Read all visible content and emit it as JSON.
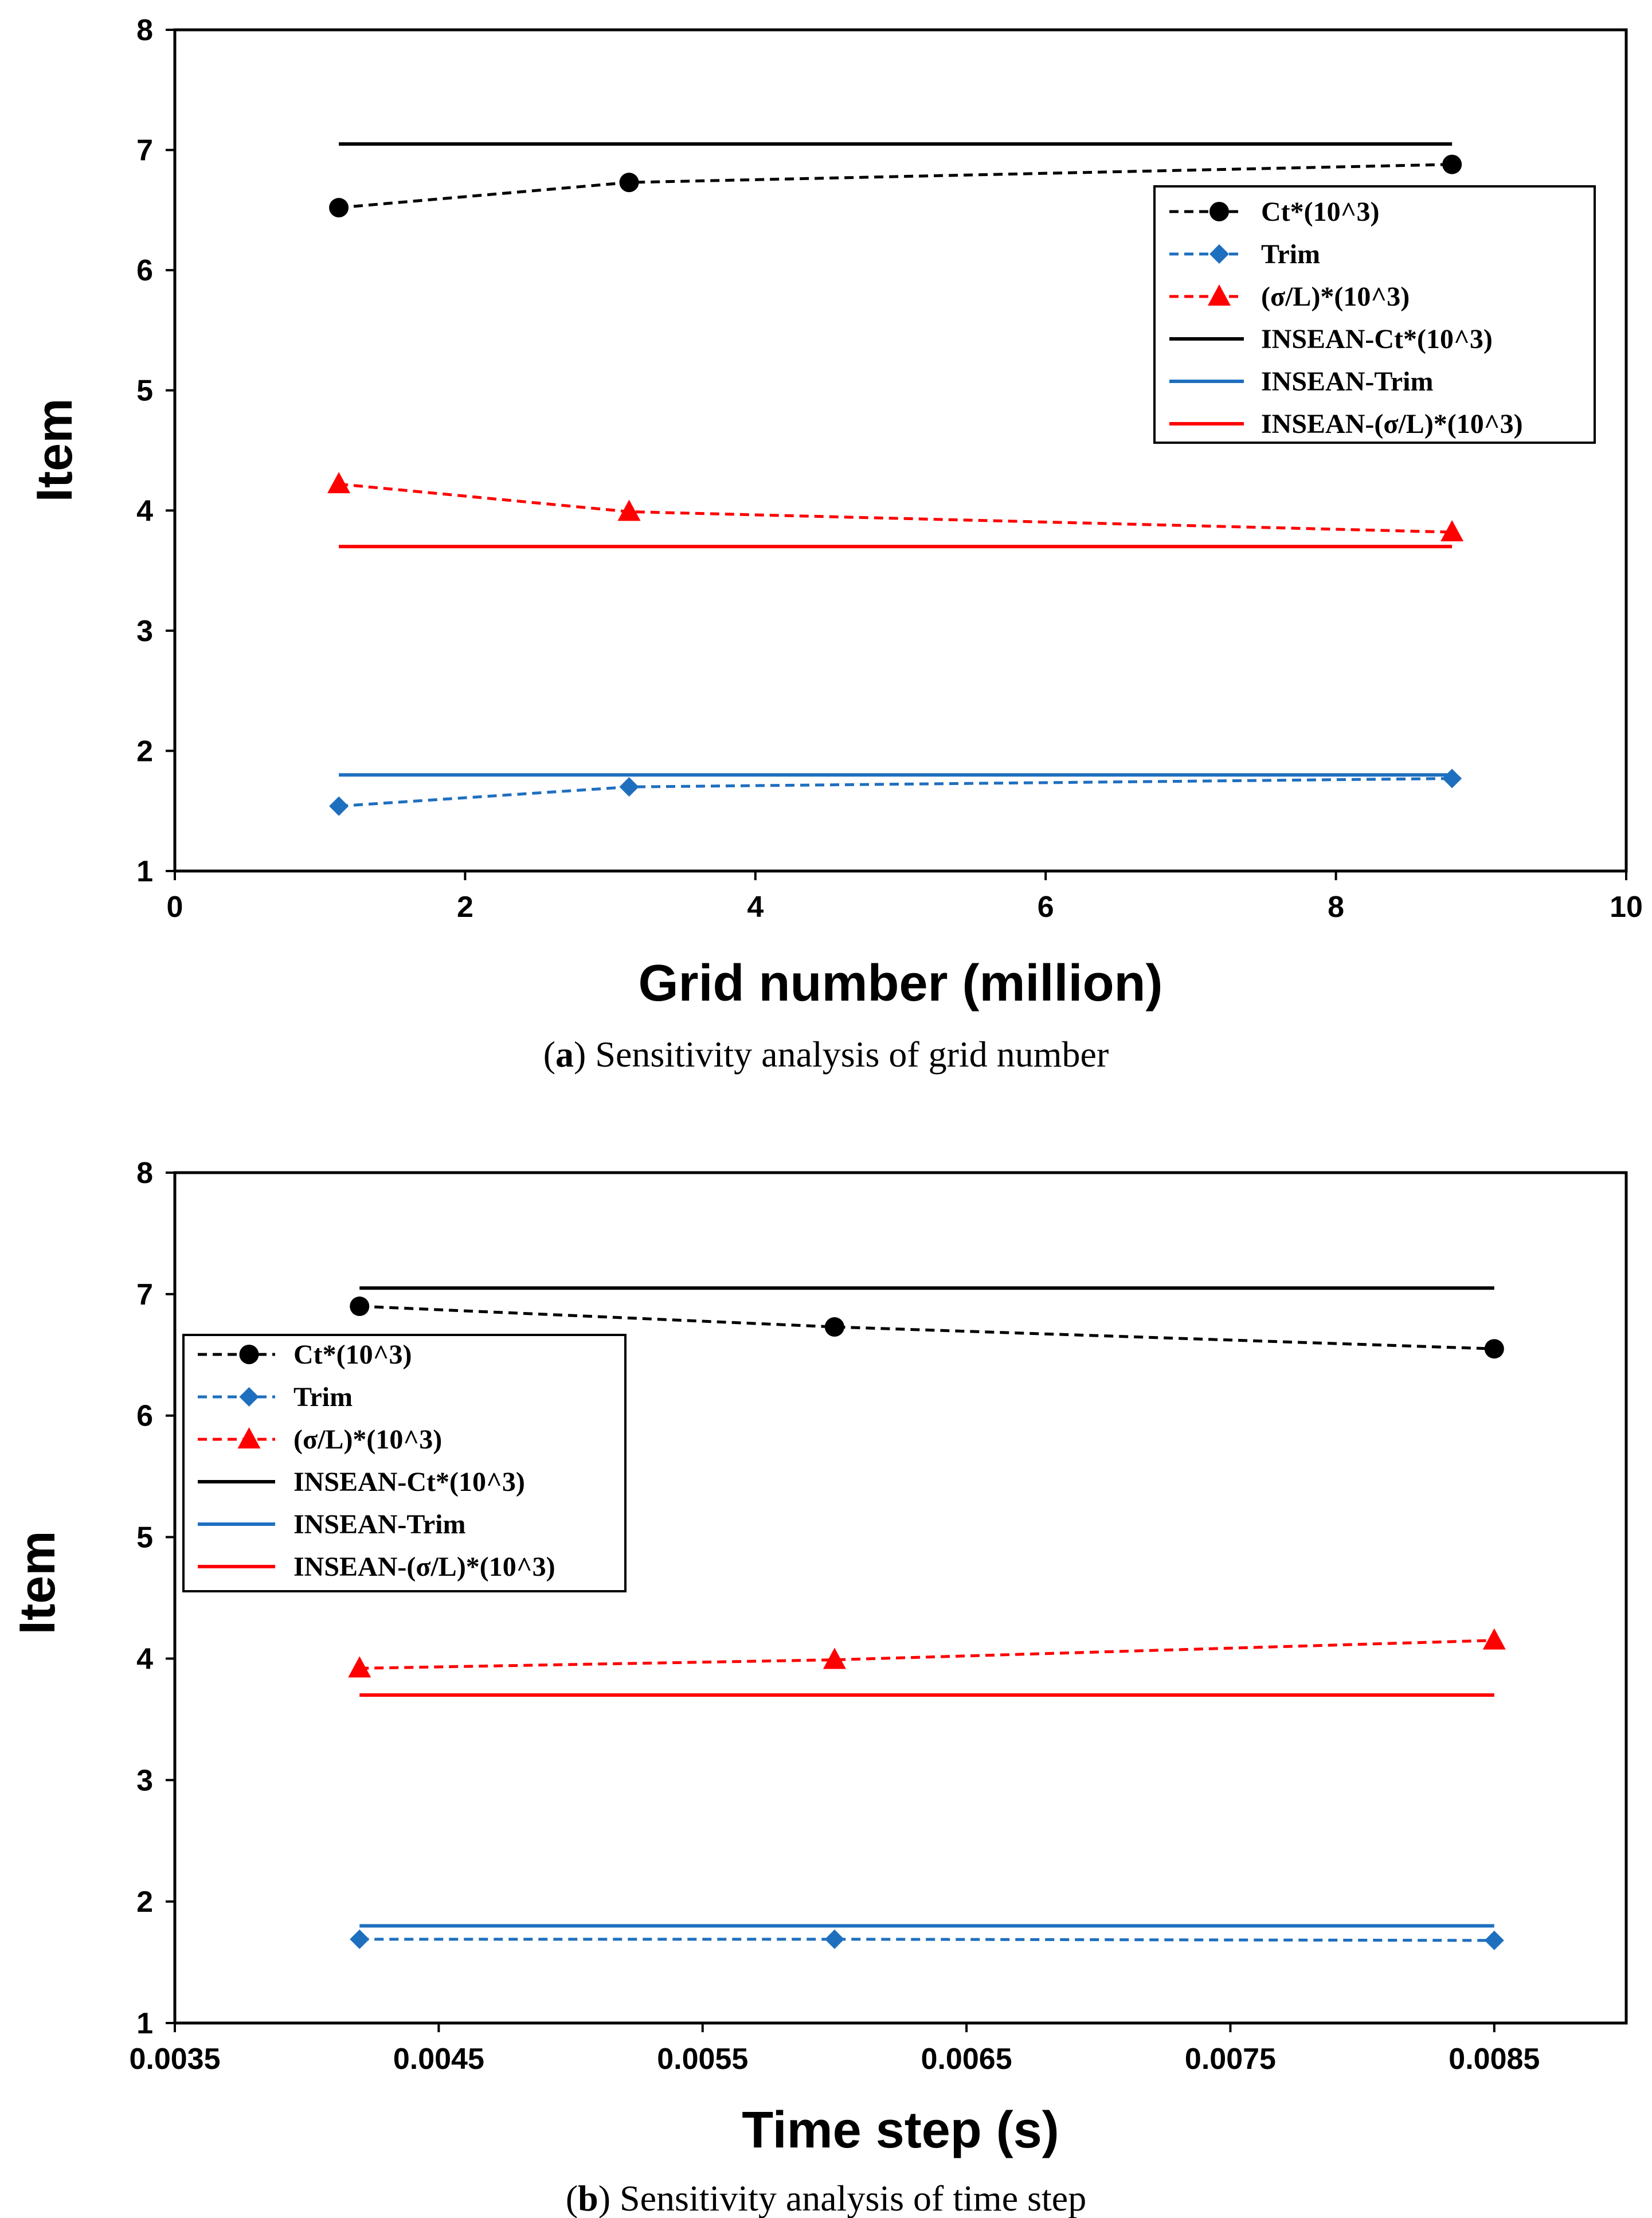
{
  "chart_data": [
    {
      "type": "line",
      "caption_letter": "a",
      "caption_text": "Sensitivity analysis of grid number",
      "caption_open": "(",
      "caption_close": ")",
      "xlabel": "Grid number (million)",
      "ylabel": "Item",
      "xlim": [
        0,
        10
      ],
      "ylim": [
        1,
        8
      ],
      "xticks": [
        0,
        2,
        4,
        6,
        8,
        10
      ],
      "xtick_labels": [
        "0",
        "2",
        "4",
        "6",
        "8",
        "10"
      ],
      "yticks": [
        1,
        2,
        3,
        4,
        5,
        6,
        7,
        8
      ],
      "ytick_labels": [
        "1",
        "2",
        "3",
        "4",
        "5",
        "6",
        "7",
        "8"
      ],
      "legend_position": "right",
      "series": [
        {
          "name": "Ct*(10^3)",
          "color": "#000000",
          "style": "dashed",
          "marker": "circle",
          "x": [
            1.13,
            3.13,
            8.8
          ],
          "y": [
            6.52,
            6.73,
            6.88
          ]
        },
        {
          "name": "Trim",
          "color": "#1f6fbf",
          "style": "dashed",
          "marker": "diamond",
          "x": [
            1.13,
            3.13,
            8.8
          ],
          "y": [
            1.54,
            1.7,
            1.77
          ]
        },
        {
          "name": "(σ/L)*(10^3)",
          "color": "#ff0000",
          "style": "dashed",
          "marker": "triangle",
          "x": [
            1.13,
            3.13,
            8.8
          ],
          "y": [
            4.22,
            3.99,
            3.82
          ]
        },
        {
          "name": "INSEAN-Ct*(10^3)",
          "color": "#000000",
          "style": "solid",
          "marker": "none",
          "x": [
            1.13,
            8.8
          ],
          "y": [
            7.05,
            7.05
          ]
        },
        {
          "name": "INSEAN-Trim",
          "color": "#1f6fbf",
          "style": "solid",
          "marker": "none",
          "x": [
            1.13,
            8.8
          ],
          "y": [
            1.8,
            1.8
          ]
        },
        {
          "name": "INSEAN-(σ/L)*(10^3)",
          "color": "#ff0000",
          "style": "solid",
          "marker": "none",
          "x": [
            1.13,
            8.8
          ],
          "y": [
            3.7,
            3.7
          ]
        }
      ]
    },
    {
      "type": "line",
      "caption_letter": "b",
      "caption_text": "Sensitivity analysis of time step",
      "caption_open": "(",
      "caption_close": ")",
      "xlabel": "Time step (s)",
      "ylabel": "Item",
      "xlim": [
        0.0035,
        0.009
      ],
      "ylim": [
        1,
        8
      ],
      "xticks": [
        0.0035,
        0.0045,
        0.0055,
        0.0065,
        0.0075,
        0.0085
      ],
      "xtick_labels": [
        "0.0035",
        "0.0045",
        "0.0055",
        "0.0065",
        "0.0075",
        "0.0085"
      ],
      "yticks": [
        1,
        2,
        3,
        4,
        5,
        6,
        7,
        8
      ],
      "ytick_labels": [
        "1",
        "2",
        "3",
        "4",
        "5",
        "6",
        "7",
        "8"
      ],
      "legend_position": "left",
      "series": [
        {
          "name": "Ct*(10^3)",
          "color": "#000000",
          "style": "dashed",
          "marker": "circle",
          "x": [
            0.0042,
            0.006,
            0.0085
          ],
          "y": [
            6.9,
            6.73,
            6.55
          ]
        },
        {
          "name": "Trim",
          "color": "#1f6fbf",
          "style": "dashed",
          "marker": "diamond",
          "x": [
            0.0042,
            0.006,
            0.0085
          ],
          "y": [
            1.69,
            1.69,
            1.68
          ]
        },
        {
          "name": "(σ/L)*(10^3)",
          "color": "#ff0000",
          "style": "dashed",
          "marker": "triangle",
          "x": [
            0.0042,
            0.006,
            0.0085
          ],
          "y": [
            3.92,
            3.99,
            4.15
          ]
        },
        {
          "name": "INSEAN-Ct*(10^3)",
          "color": "#000000",
          "style": "solid",
          "marker": "none",
          "x": [
            0.0042,
            0.0085
          ],
          "y": [
            7.05,
            7.05
          ]
        },
        {
          "name": "INSEAN-Trim",
          "color": "#1f6fbf",
          "style": "solid",
          "marker": "none",
          "x": [
            0.0042,
            0.0085
          ],
          "y": [
            1.8,
            1.8
          ]
        },
        {
          "name": "INSEAN-(σ/L)*(10^3)",
          "color": "#ff0000",
          "style": "solid",
          "marker": "none",
          "x": [
            0.0042,
            0.0085
          ],
          "y": [
            3.7,
            3.7
          ]
        }
      ]
    }
  ]
}
